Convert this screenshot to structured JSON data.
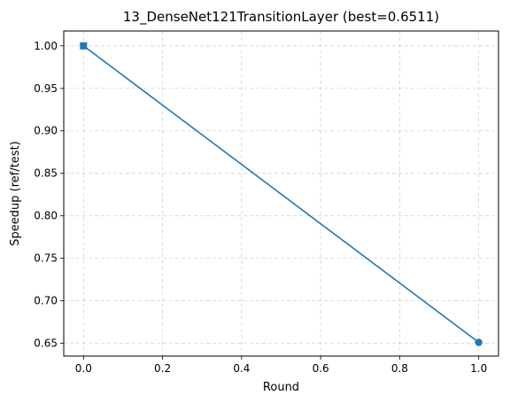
{
  "chart_data": {
    "type": "line",
    "title": "13_DenseNet121TransitionLayer (best=0.6511)",
    "xlabel": "Round",
    "ylabel": "Speedup (ref/test)",
    "xlim": [
      -0.05,
      1.05
    ],
    "ylim": [
      0.635,
      1.0175
    ],
    "xticks": [
      0.0,
      0.2,
      0.4,
      0.6,
      0.8,
      1.0
    ],
    "xtick_labels": [
      "0.0",
      "0.2",
      "0.4",
      "0.6",
      "0.8",
      "1.0"
    ],
    "yticks": [
      0.65,
      0.7,
      0.75,
      0.8,
      0.85,
      0.9,
      0.95,
      1.0
    ],
    "ytick_labels": [
      "0.65",
      "0.70",
      "0.75",
      "0.80",
      "0.85",
      "0.90",
      "0.95",
      "1.00"
    ],
    "grid": true,
    "series": [
      {
        "color": "#1f77b4",
        "x": [
          0,
          1
        ],
        "y": [
          1.0,
          0.6511
        ],
        "markers": [
          "square",
          "circle"
        ]
      }
    ]
  }
}
